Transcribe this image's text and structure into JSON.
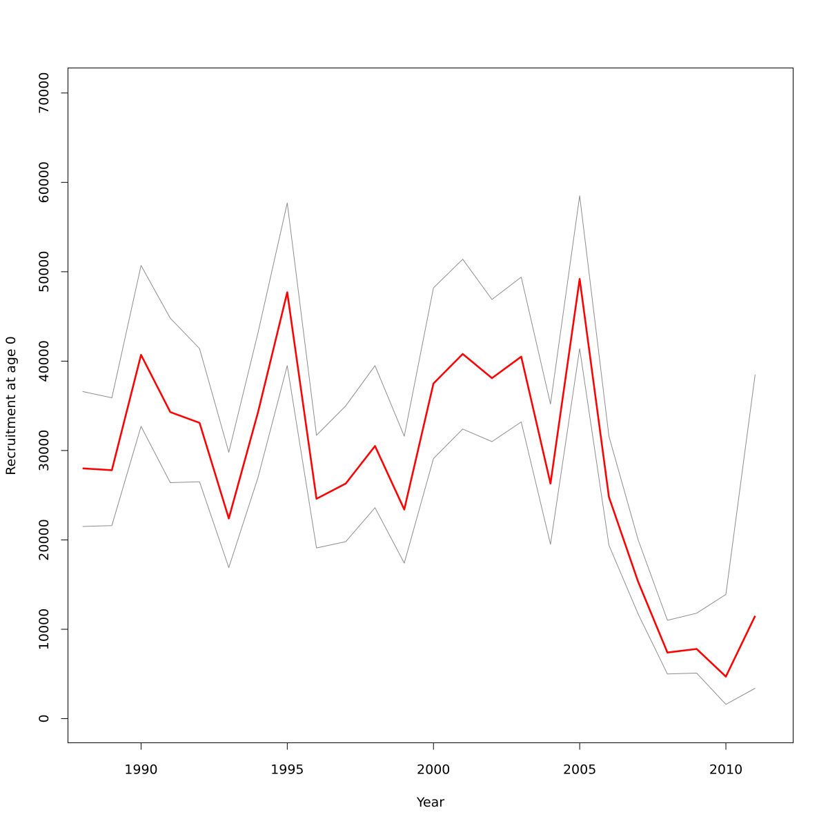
{
  "chart_data": {
    "type": "line",
    "title": "",
    "xlabel": "Year",
    "ylabel": "Recruitment at age 0",
    "xlim": [
      1987.5,
      2012.3
    ],
    "ylim": [
      -2700,
      72800
    ],
    "x_ticks": [
      "1990",
      "1995",
      "2000",
      "2005",
      "2010"
    ],
    "y_ticks": [
      "0",
      "10000",
      "20000",
      "30000",
      "40000",
      "50000",
      "60000",
      "70000"
    ],
    "grid": false,
    "legend": "none",
    "x": [
      1988,
      1989,
      1990,
      1991,
      1992,
      1993,
      1994,
      1995,
      1996,
      1997,
      1998,
      1999,
      2000,
      2001,
      2002,
      2003,
      2004,
      2005,
      2006,
      2007,
      2008,
      2009,
      2010,
      2011
    ],
    "series": [
      {
        "color": "#ff0000",
        "values": [
          28000,
          27800,
          40700,
          34300,
          33100,
          22400,
          34300,
          47700,
          24600,
          26300,
          30500,
          23400,
          37500,
          40800,
          38100,
          40500,
          26300,
          49200,
          24800,
          15300,
          7400,
          7800,
          4700,
          11500
        ]
      },
      {
        "color": "#8c8c8c",
        "values": [
          36600,
          35900,
          50700,
          44800,
          41400,
          29800,
          43200,
          57700,
          31700,
          35000,
          39500,
          31600,
          48200,
          51400,
          46900,
          49400,
          35200,
          58500,
          31600,
          20000,
          11000,
          11800,
          13900,
          38500
        ]
      },
      {
        "color": "#8c8c8c",
        "values": [
          21500,
          21600,
          32700,
          26400,
          26500,
          16900,
          27000,
          39500,
          19100,
          19800,
          23600,
          17400,
          29100,
          32400,
          31000,
          33200,
          19500,
          41400,
          19400,
          11700,
          5000,
          5100,
          1600,
          3400
        ]
      }
    ]
  }
}
